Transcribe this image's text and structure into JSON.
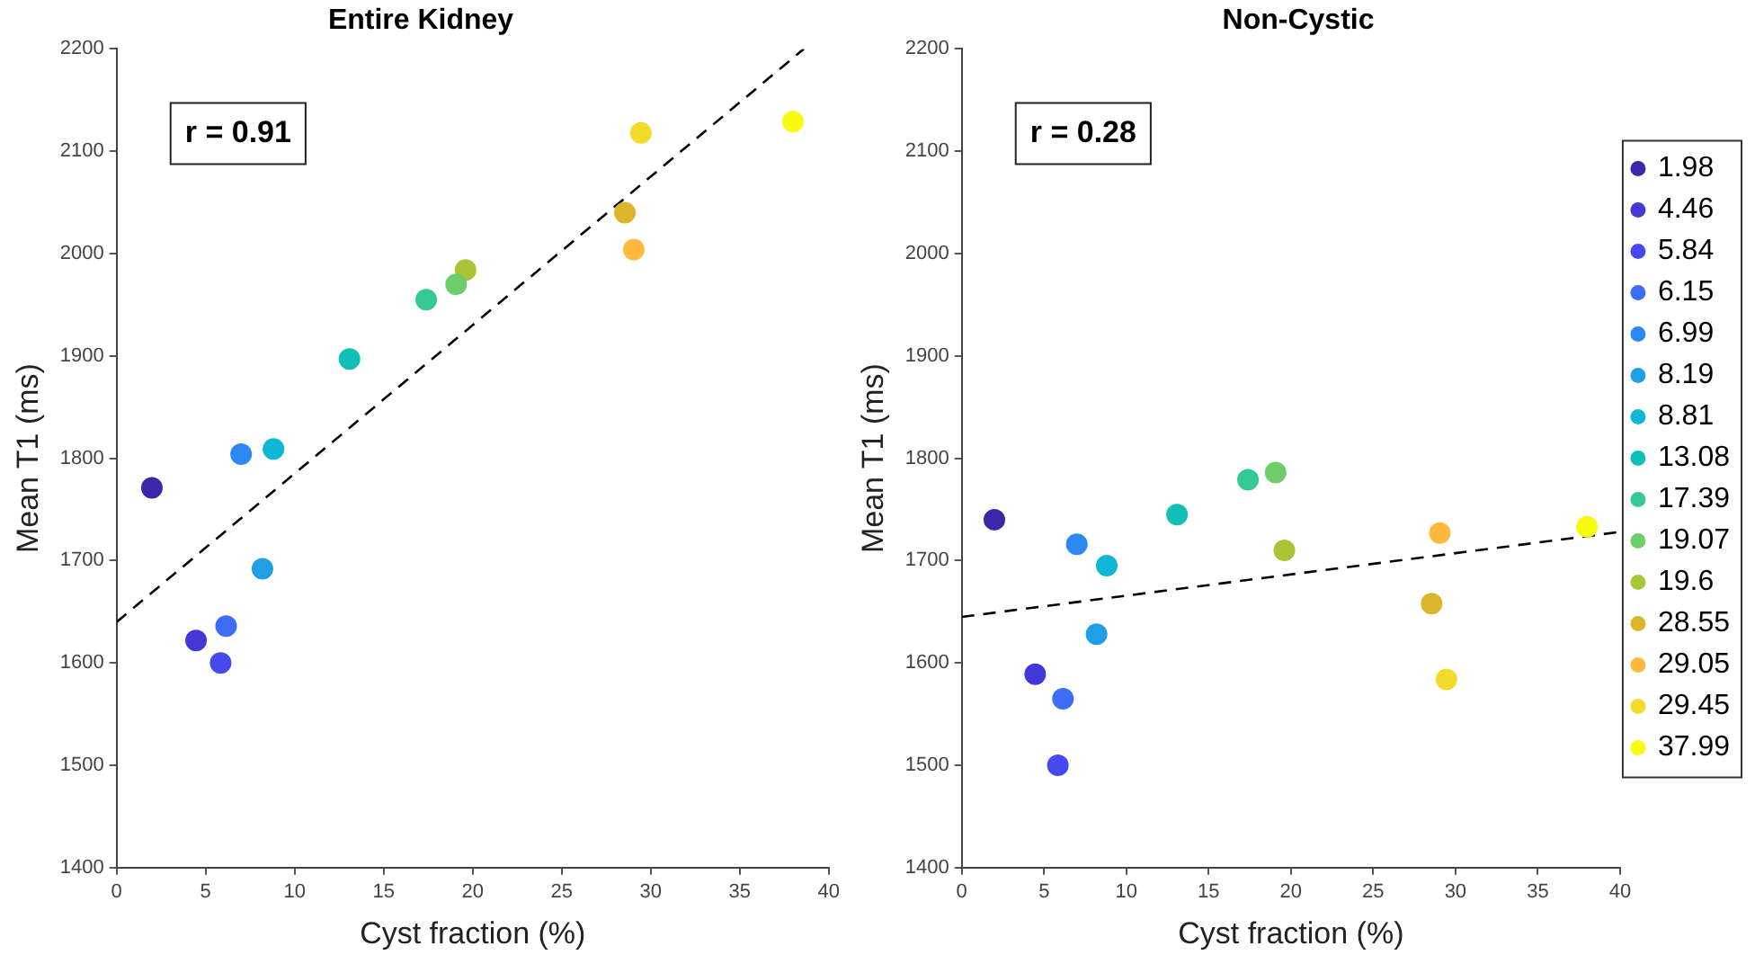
{
  "chart_data": [
    {
      "type": "scatter",
      "title": "Entire Kidney",
      "xlabel": "Cyst fraction (%)",
      "ylabel": "Mean T1 (ms)",
      "xlim": [
        0,
        40
      ],
      "xticks": [
        0,
        5,
        10,
        15,
        20,
        25,
        30,
        35,
        40
      ],
      "ylim": [
        1400,
        2200
      ],
      "yticks": [
        1400,
        1500,
        1600,
        1700,
        1800,
        1900,
        2000,
        2100,
        2200
      ],
      "grid": false,
      "legend": false,
      "marker": "circle",
      "annotations": [
        "r = 0.91"
      ],
      "series": [
        {
          "color": "#3e26a8",
          "x": [
            1.98
          ],
          "values": [
            1771
          ]
        },
        {
          "color": "#4437d7",
          "x": [
            4.46
          ],
          "values": [
            1622
          ]
        },
        {
          "color": "#4848f0",
          "x": [
            5.84
          ],
          "values": [
            1600
          ]
        },
        {
          "color": "#3d6cf5",
          "x": [
            6.15
          ],
          "values": [
            1636
          ]
        },
        {
          "color": "#2c89f3",
          "x": [
            6.99
          ],
          "values": [
            1804
          ]
        },
        {
          "color": "#1fa0e5",
          "x": [
            8.19
          ],
          "values": [
            1692
          ]
        },
        {
          "color": "#0fb6d8",
          "x": [
            8.81
          ],
          "values": [
            1809
          ]
        },
        {
          "color": "#12bfb7",
          "x": [
            13.08
          ],
          "values": [
            1897
          ]
        },
        {
          "color": "#35c994",
          "x": [
            17.39
          ],
          "values": [
            1955
          ]
        },
        {
          "color": "#6ccd6a",
          "x": [
            19.07
          ],
          "values": [
            1970
          ]
        },
        {
          "color": "#a8c536",
          "x": [
            19.6
          ],
          "values": [
            1984
          ]
        },
        {
          "color": "#dcb62a",
          "x": [
            28.55
          ],
          "values": [
            2040
          ]
        },
        {
          "color": "#feb93e",
          "x": [
            29.05
          ],
          "values": [
            2004
          ]
        },
        {
          "color": "#f4da2a",
          "x": [
            29.45
          ],
          "values": [
            2118
          ]
        },
        {
          "color": "#f9fb0e",
          "x": [
            37.99
          ],
          "values": [
            2129
          ]
        },
        {
          "type": "line",
          "color": "#000000",
          "line_style": "dashed",
          "marker": "none",
          "x": [
            0,
            38.6
          ],
          "values": [
            1640,
            2200
          ]
        }
      ]
    },
    {
      "type": "scatter",
      "title": "Non-Cystic",
      "xlabel": "Cyst fraction (%)",
      "ylabel": "Mean T1 (ms)",
      "xlim": [
        0,
        40
      ],
      "xticks": [
        0,
        5,
        10,
        15,
        20,
        25,
        30,
        35,
        40
      ],
      "ylim": [
        1400,
        2200
      ],
      "yticks": [
        1400,
        1500,
        1600,
        1700,
        1800,
        1900,
        2000,
        2100,
        2200
      ],
      "grid": false,
      "legend": "right",
      "marker": "circle",
      "annotations": [
        "r = 0.28"
      ],
      "series": [
        {
          "name": "1.98",
          "color": "#3e26a8",
          "x": [
            1.98
          ],
          "values": [
            1740
          ]
        },
        {
          "name": "4.46",
          "color": "#4437d7",
          "x": [
            4.46
          ],
          "values": [
            1589
          ]
        },
        {
          "name": "5.84",
          "color": "#4848f0",
          "x": [
            5.84
          ],
          "values": [
            1500
          ]
        },
        {
          "name": "6.15",
          "color": "#3d6cf5",
          "x": [
            6.15
          ],
          "values": [
            1565
          ]
        },
        {
          "name": "6.99",
          "color": "#2c89f3",
          "x": [
            6.99
          ],
          "values": [
            1716
          ]
        },
        {
          "name": "8.19",
          "color": "#1fa0e5",
          "x": [
            8.19
          ],
          "values": [
            1628
          ]
        },
        {
          "name": "8.81",
          "color": "#0fb6d8",
          "x": [
            8.81
          ],
          "values": [
            1695
          ]
        },
        {
          "name": "13.08",
          "color": "#12bfb7",
          "x": [
            13.08
          ],
          "values": [
            1745
          ]
        },
        {
          "name": "17.39",
          "color": "#35c994",
          "x": [
            17.39
          ],
          "values": [
            1779
          ]
        },
        {
          "name": "19.07",
          "color": "#6ccd6a",
          "x": [
            19.07
          ],
          "values": [
            1786
          ]
        },
        {
          "name": "19.6",
          "color": "#a8c536",
          "x": [
            19.6
          ],
          "values": [
            1710
          ]
        },
        {
          "name": "28.55",
          "color": "#dcb62a",
          "x": [
            28.55
          ],
          "values": [
            1658
          ]
        },
        {
          "name": "29.05",
          "color": "#feb93e",
          "x": [
            29.05
          ],
          "values": [
            1727
          ]
        },
        {
          "name": "29.45",
          "color": "#f4da2a",
          "x": [
            29.45
          ],
          "values": [
            1584
          ]
        },
        {
          "name": "37.99",
          "color": "#f9fb0e",
          "x": [
            37.99
          ],
          "values": [
            1733
          ]
        },
        {
          "type": "line",
          "color": "#000000",
          "line_style": "dashed",
          "marker": "none",
          "x": [
            0,
            40
          ],
          "values": [
            1645,
            1728
          ]
        }
      ]
    }
  ]
}
